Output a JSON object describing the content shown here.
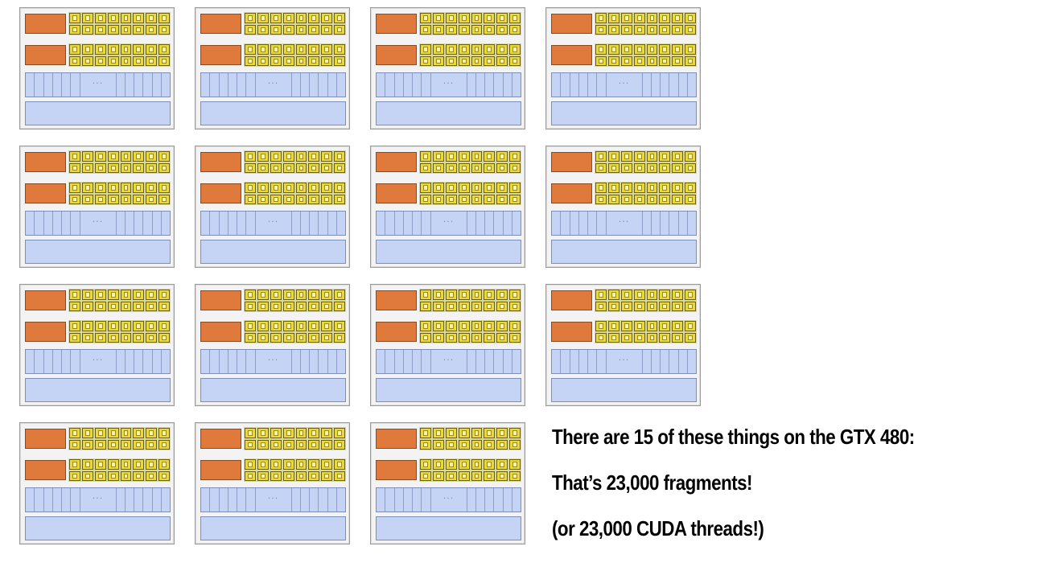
{
  "diagram": {
    "unit_count": 15,
    "columns": 4,
    "colors": {
      "fetch_decode": "#e07a3c",
      "alu": "#e9d93a",
      "context_storage": "#c5d4f5",
      "frame": "#9a9a9a"
    },
    "context_ellipsis": "···"
  },
  "caption": {
    "line1": "There are 15 of these things on the GTX 480:",
    "line2": "That’s 23,000 fragments!",
    "line3": "(or 23,000 CUDA threads!)"
  }
}
